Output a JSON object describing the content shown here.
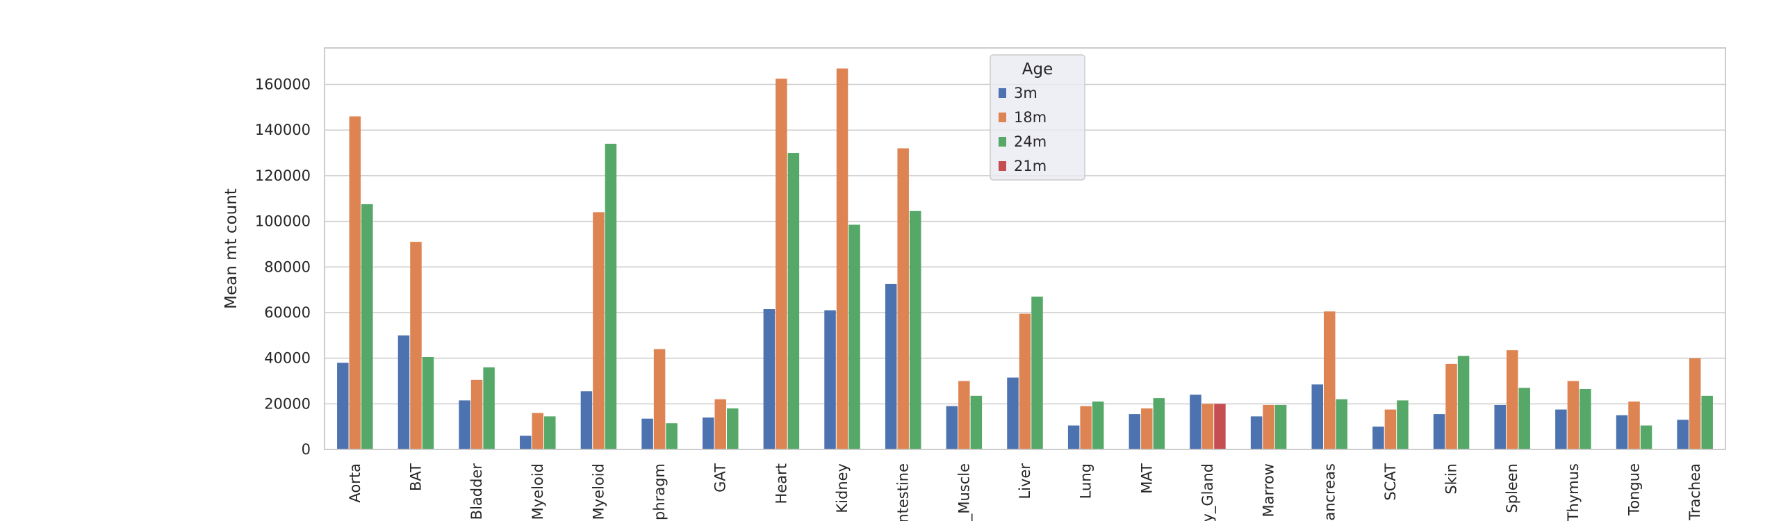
{
  "chart_data": {
    "type": "bar",
    "ylabel": "Mean mt count",
    "xlabel": "",
    "ylim": [
      0,
      176000
    ],
    "yticks": [
      0,
      20000,
      40000,
      60000,
      80000,
      100000,
      120000,
      140000,
      160000
    ],
    "grid": true,
    "legend": {
      "title": "Age",
      "placement": "top-center"
    },
    "categories": [
      "Aorta",
      "BAT",
      "Bladder",
      "Myeloid",
      "Myeloid",
      "phragm",
      "GAT",
      "Heart",
      "Kidney",
      "ntestine",
      "_Muscle",
      "Liver",
      "Lung",
      "MAT",
      "y_Gland",
      "Marrow",
      "ancreas",
      "SCAT",
      "Skin",
      "Spleen",
      "Thymus",
      "Tongue",
      "Trachea"
    ],
    "series": [
      {
        "name": "3m",
        "color": "#4c72b0",
        "values": [
          38000,
          50000,
          21500,
          6000,
          25500,
          13500,
          14000,
          61500,
          61000,
          72500,
          19000,
          31500,
          10500,
          15500,
          24000,
          14500,
          28500,
          10000,
          15500,
          19500,
          17500,
          15000,
          13000
        ]
      },
      {
        "name": "18m",
        "color": "#dd8452",
        "values": [
          146000,
          91000,
          30500,
          16000,
          104000,
          44000,
          22000,
          162500,
          167000,
          132000,
          30000,
          59500,
          19000,
          18000,
          20000,
          19500,
          60500,
          17500,
          37500,
          43500,
          30000,
          21000,
          40000
        ]
      },
      {
        "name": "24m",
        "color": "#55a868",
        "values": [
          107500,
          40500,
          36000,
          14500,
          134000,
          11500,
          18000,
          130000,
          98500,
          104500,
          23500,
          67000,
          21000,
          22500,
          null,
          19500,
          22000,
          21500,
          41000,
          27000,
          26500,
          10500,
          23500
        ]
      },
      {
        "name": "21m",
        "color": "#c44e52",
        "values": [
          null,
          null,
          null,
          null,
          null,
          null,
          null,
          null,
          null,
          null,
          null,
          null,
          null,
          null,
          20000,
          null,
          null,
          null,
          null,
          null,
          null,
          null,
          null
        ]
      }
    ]
  }
}
